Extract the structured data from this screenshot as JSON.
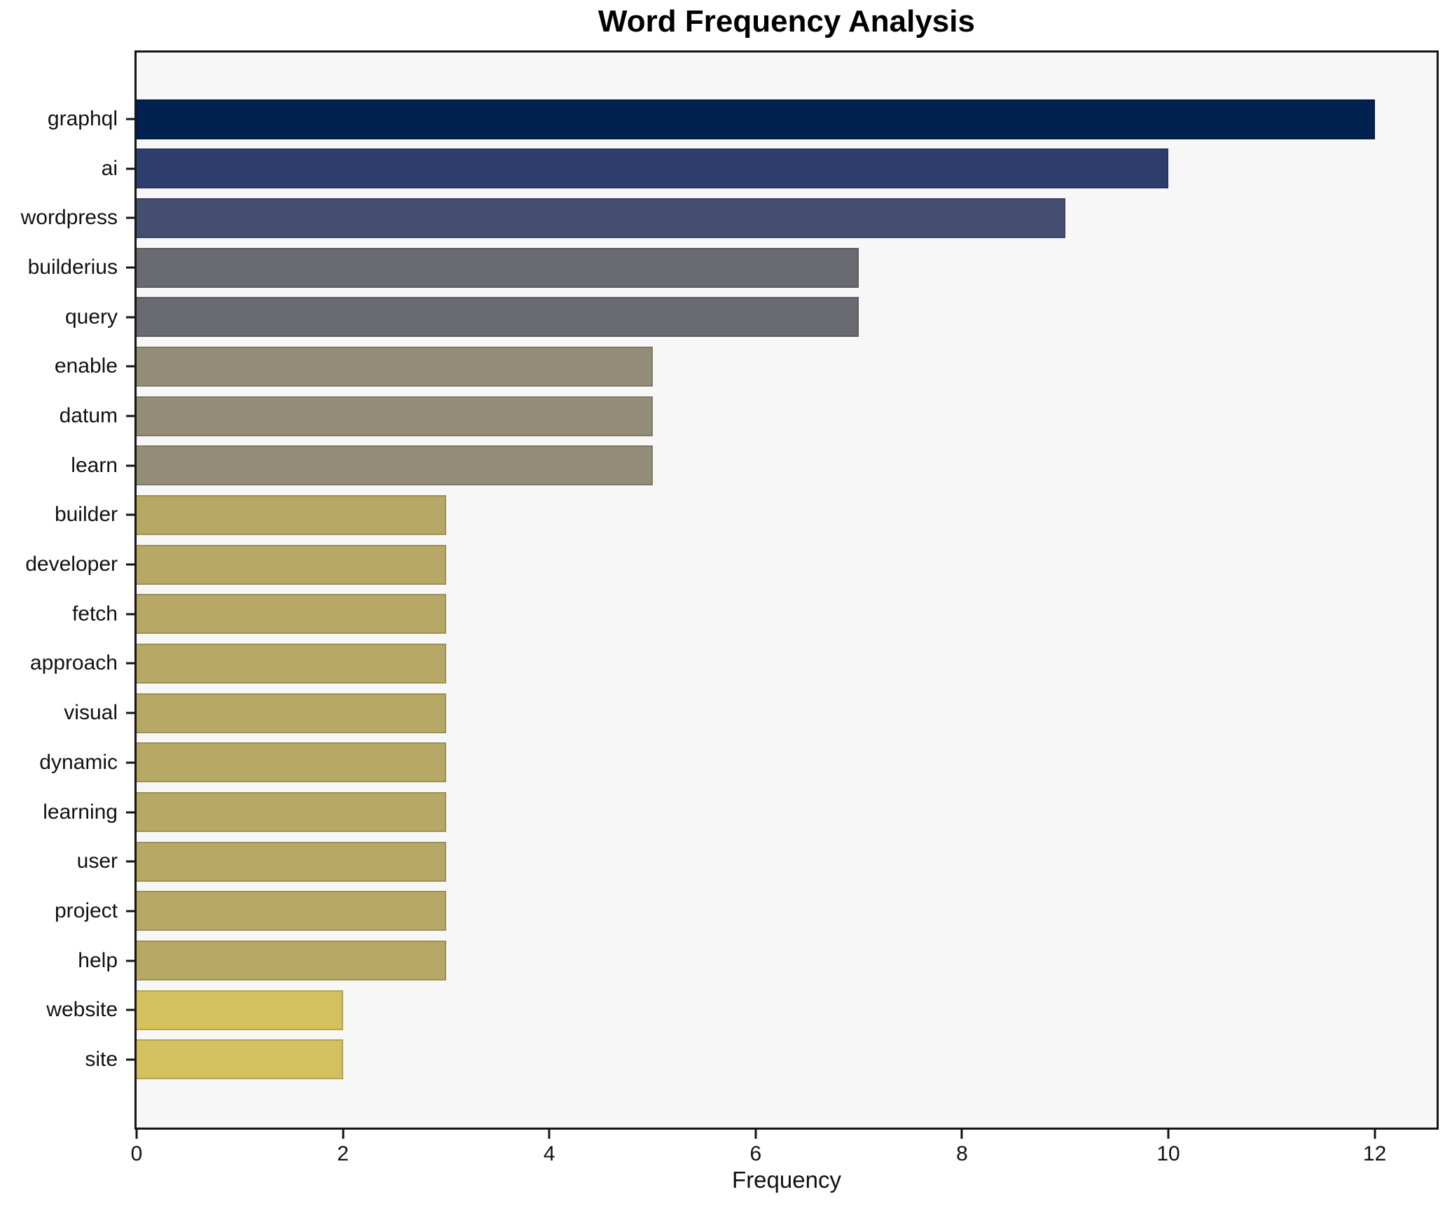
{
  "title": "Word Frequency Analysis",
  "chart_data": {
    "type": "bar",
    "orientation": "horizontal",
    "title": "Word Frequency Analysis",
    "xlabel": "Frequency",
    "ylabel": "",
    "categories": [
      "graphql",
      "ai",
      "wordpress",
      "builderius",
      "query",
      "enable",
      "datum",
      "learn",
      "builder",
      "developer",
      "fetch",
      "approach",
      "visual",
      "dynamic",
      "learning",
      "user",
      "project",
      "help",
      "website",
      "site"
    ],
    "values": [
      12,
      10,
      9,
      7,
      7,
      5,
      5,
      5,
      3,
      3,
      3,
      3,
      3,
      3,
      3,
      3,
      3,
      3,
      2,
      2
    ],
    "bar_colors": [
      "#01224e",
      "#2d3e6c",
      "#444e70",
      "#696a72",
      "#696a72",
      "#938c77",
      "#938c77",
      "#938c77",
      "#b7a866",
      "#b7a866",
      "#b7a866",
      "#b7a866",
      "#b7a866",
      "#b7a866",
      "#b7a866",
      "#b7a866",
      "#b7a866",
      "#b7a866",
      "#d3c05f",
      "#d3c05f"
    ],
    "x_ticks": [
      0,
      2,
      4,
      6,
      8,
      10,
      12
    ],
    "xlim": [
      0,
      12.6
    ],
    "grid": false,
    "legend": "none",
    "plot_background": "#f7f7f8",
    "figure_background": "#ffffff",
    "spine_color": "#141414"
  }
}
